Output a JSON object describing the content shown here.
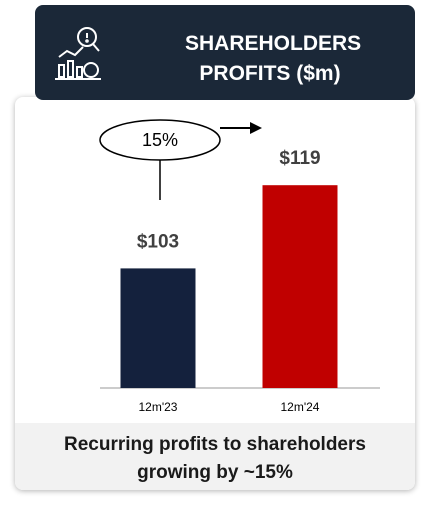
{
  "chart_data": {
    "type": "bar",
    "title": "SHAREHOLDERS PROFITS ($m)",
    "categories": [
      "12m'23",
      "12m'24"
    ],
    "values": [
      103,
      119
    ],
    "value_labels": [
      "$103",
      "$119"
    ],
    "colors": [
      "#14213d",
      "#c00000"
    ],
    "ylim": [
      80,
      125
    ],
    "annotation": "15%",
    "caption": "Recurring profits to shareholders growing by ~15%"
  }
}
